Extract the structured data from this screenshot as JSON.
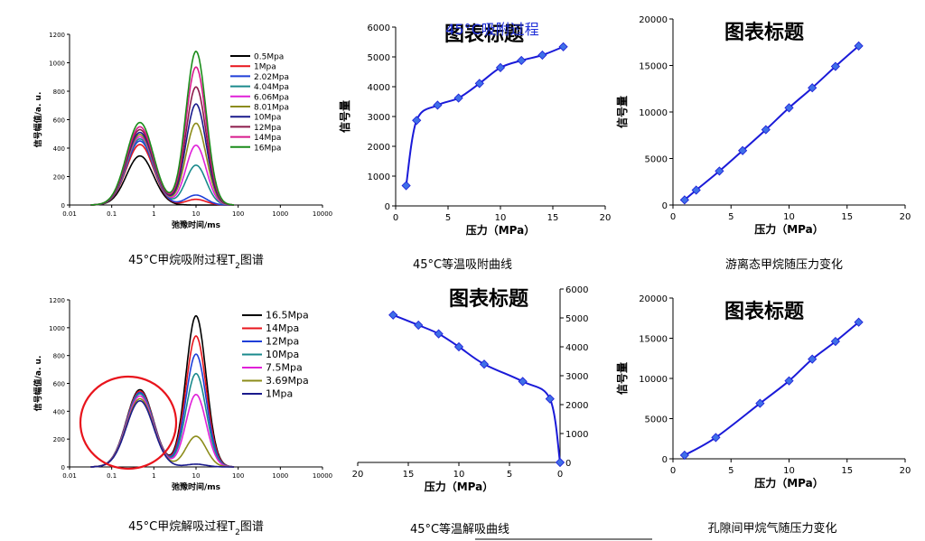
{
  "chart_data": [
    {
      "id": "p1",
      "type": "line",
      "xscale": "log",
      "xlim": [
        0.01,
        10000
      ],
      "ylim": [
        0,
        1200
      ],
      "xticks": [
        "0.01",
        "0.1",
        "1",
        "10",
        "100",
        "1000",
        "10000"
      ],
      "yticks": [
        "0",
        "200",
        "400",
        "600",
        "800",
        "1000",
        "1200"
      ],
      "xlabel": "弛豫时间/ms",
      "ylabel": "信号幅值/a. u.",
      "caption": "45°C甲烷吸附过程T",
      "caption_sub": "2",
      "caption_tail": "图谱",
      "legend_position": "top-right",
      "series": [
        {
          "name": "0.5Mpa",
          "color": "#000000",
          "p1": 345,
          "p2": 0,
          "p3": 0
        },
        {
          "name": "1Mpa",
          "color": "#e8141c",
          "p1": 425,
          "p2": 40,
          "p3": 0
        },
        {
          "name": "2.02Mpa",
          "color": "#1f3fd8",
          "p1": 450,
          "p2": 70,
          "p3": 30
        },
        {
          "name": "4.04Mpa",
          "color": "#1a8a8c",
          "p1": 465,
          "p2": 280,
          "p3": 45
        },
        {
          "name": "6.06Mpa",
          "color": "#e020d8",
          "p1": 480,
          "p2": 420,
          "p3": 55
        },
        {
          "name": "8.01Mpa",
          "color": "#8c8c1a",
          "p1": 495,
          "p2": 575,
          "p3": 65
        },
        {
          "name": "10Mpa",
          "color": "#1a1a8c",
          "p1": 510,
          "p2": 710,
          "p3": 75
        },
        {
          "name": "12Mpa",
          "color": "#8c1a4a",
          "p1": 530,
          "p2": 830,
          "p3": 85
        },
        {
          "name": "14Mpa",
          "color": "#d81a8c",
          "p1": 550,
          "p2": 970,
          "p3": 95
        },
        {
          "name": "16Mpa",
          "color": "#1a8c1a",
          "p1": 580,
          "p2": 1080,
          "p3": 105
        }
      ]
    },
    {
      "id": "p2",
      "type": "line",
      "title": "图表标题",
      "overlay_title": "45°C吸附过程",
      "xlim": [
        0,
        20
      ],
      "ylim": [
        0,
        6000
      ],
      "xticks": [
        "0",
        "5",
        "10",
        "15",
        "20"
      ],
      "yticks": [
        "0",
        "1000",
        "2000",
        "3000",
        "4000",
        "5000",
        "6000"
      ],
      "xlabel": "压力（MPa）",
      "ylabel": "信号量",
      "caption": "45°C等温吸附曲线",
      "series": [
        {
          "color": "#1a1ad8",
          "x": [
            1,
            2,
            4,
            6,
            8,
            10,
            12,
            14,
            16
          ],
          "y": [
            680,
            2870,
            3380,
            3620,
            4110,
            4640,
            4880,
            5060,
            5340
          ]
        }
      ]
    },
    {
      "id": "p3",
      "type": "line",
      "title": "图表标题",
      "xlim": [
        0,
        20
      ],
      "ylim": [
        0,
        20000
      ],
      "xticks": [
        "0",
        "5",
        "10",
        "15",
        "20"
      ],
      "yticks": [
        "0",
        "5000",
        "10000",
        "15000",
        "20000"
      ],
      "xlabel": "压力（MPa）",
      "ylabel": "信号量",
      "caption": "游离态甲烷随压力变化",
      "series": [
        {
          "color": "#1a1ad8",
          "x": [
            1,
            2,
            4,
            6,
            8,
            10,
            12,
            14,
            16
          ],
          "y": [
            550,
            1600,
            3650,
            5850,
            8100,
            10450,
            12600,
            14900,
            17100
          ]
        }
      ]
    },
    {
      "id": "p4",
      "type": "line",
      "xscale": "log",
      "xlim": [
        0.01,
        10000
      ],
      "ylim": [
        0,
        1200
      ],
      "xticks": [
        "0.01",
        "0.1",
        "1",
        "10",
        "100",
        "1000",
        "10000"
      ],
      "yticks": [
        "0",
        "200",
        "400",
        "600",
        "800",
        "1000",
        "1200"
      ],
      "xlabel": "弛豫时间/ms",
      "ylabel": "信号幅值/a. u.",
      "caption": "45°C甲烷解吸过程T",
      "caption_sub": "2",
      "caption_tail": "图谱",
      "legend_position": "top-right",
      "series": [
        {
          "name": "16.5Mpa",
          "color": "#000000",
          "p1": 555,
          "p2": 1085,
          "p3": 100
        },
        {
          "name": "14Mpa",
          "color": "#e8141c",
          "p1": 545,
          "p2": 940,
          "p3": 90
        },
        {
          "name": "12Mpa",
          "color": "#1f3fd8",
          "p1": 535,
          "p2": 810,
          "p3": 80
        },
        {
          "name": "10Mpa",
          "color": "#1a8a8c",
          "p1": 525,
          "p2": 670,
          "p3": 70
        },
        {
          "name": "7.5Mpa",
          "color": "#e020d8",
          "p1": 510,
          "p2": 520,
          "p3": 60
        },
        {
          "name": "3.69Mpa",
          "color": "#8c8c1a",
          "p1": 490,
          "p2": 220,
          "p3": 45
        },
        {
          "name": "1Mpa",
          "color": "#1a1a8c",
          "p1": 475,
          "p2": 20,
          "p3": 10
        }
      ],
      "annotation": "red ellipse around first peak"
    },
    {
      "id": "p5",
      "type": "line",
      "title": "图表标题",
      "xlim": [
        20,
        0
      ],
      "ylim": [
        0,
        6000
      ],
      "yaxis_position": "right",
      "xticks": [
        "20",
        "15",
        "10",
        "5",
        "0"
      ],
      "yticks": [
        "0",
        "1000",
        "2000",
        "3000",
        "4000",
        "5000",
        "6000"
      ],
      "xlabel": "压力（MPa）",
      "caption": "45°C等温解吸曲线",
      "series": [
        {
          "color": "#1a1ad8",
          "x": [
            16.5,
            14,
            12,
            10,
            7.5,
            3.69,
            1,
            0
          ],
          "y": [
            5100,
            4750,
            4450,
            4000,
            3400,
            2800,
            2200,
            0
          ]
        }
      ]
    },
    {
      "id": "p6",
      "type": "line",
      "title": "图表标题",
      "xlim": [
        0,
        20
      ],
      "ylim": [
        0,
        20000
      ],
      "xticks": [
        "0",
        "5",
        "10",
        "15",
        "20"
      ],
      "yticks": [
        "0",
        "5000",
        "10000",
        "15000",
        "20000"
      ],
      "xlabel": "压力（MPa）",
      "ylabel": "信号量",
      "caption": "孔隙间甲烷气随压力变化",
      "series": [
        {
          "color": "#1a1ad8",
          "x": [
            1,
            3.69,
            7.5,
            10,
            12,
            14,
            16
          ],
          "y": [
            450,
            2650,
            6900,
            9700,
            12400,
            14600,
            17000
          ]
        }
      ]
    }
  ]
}
